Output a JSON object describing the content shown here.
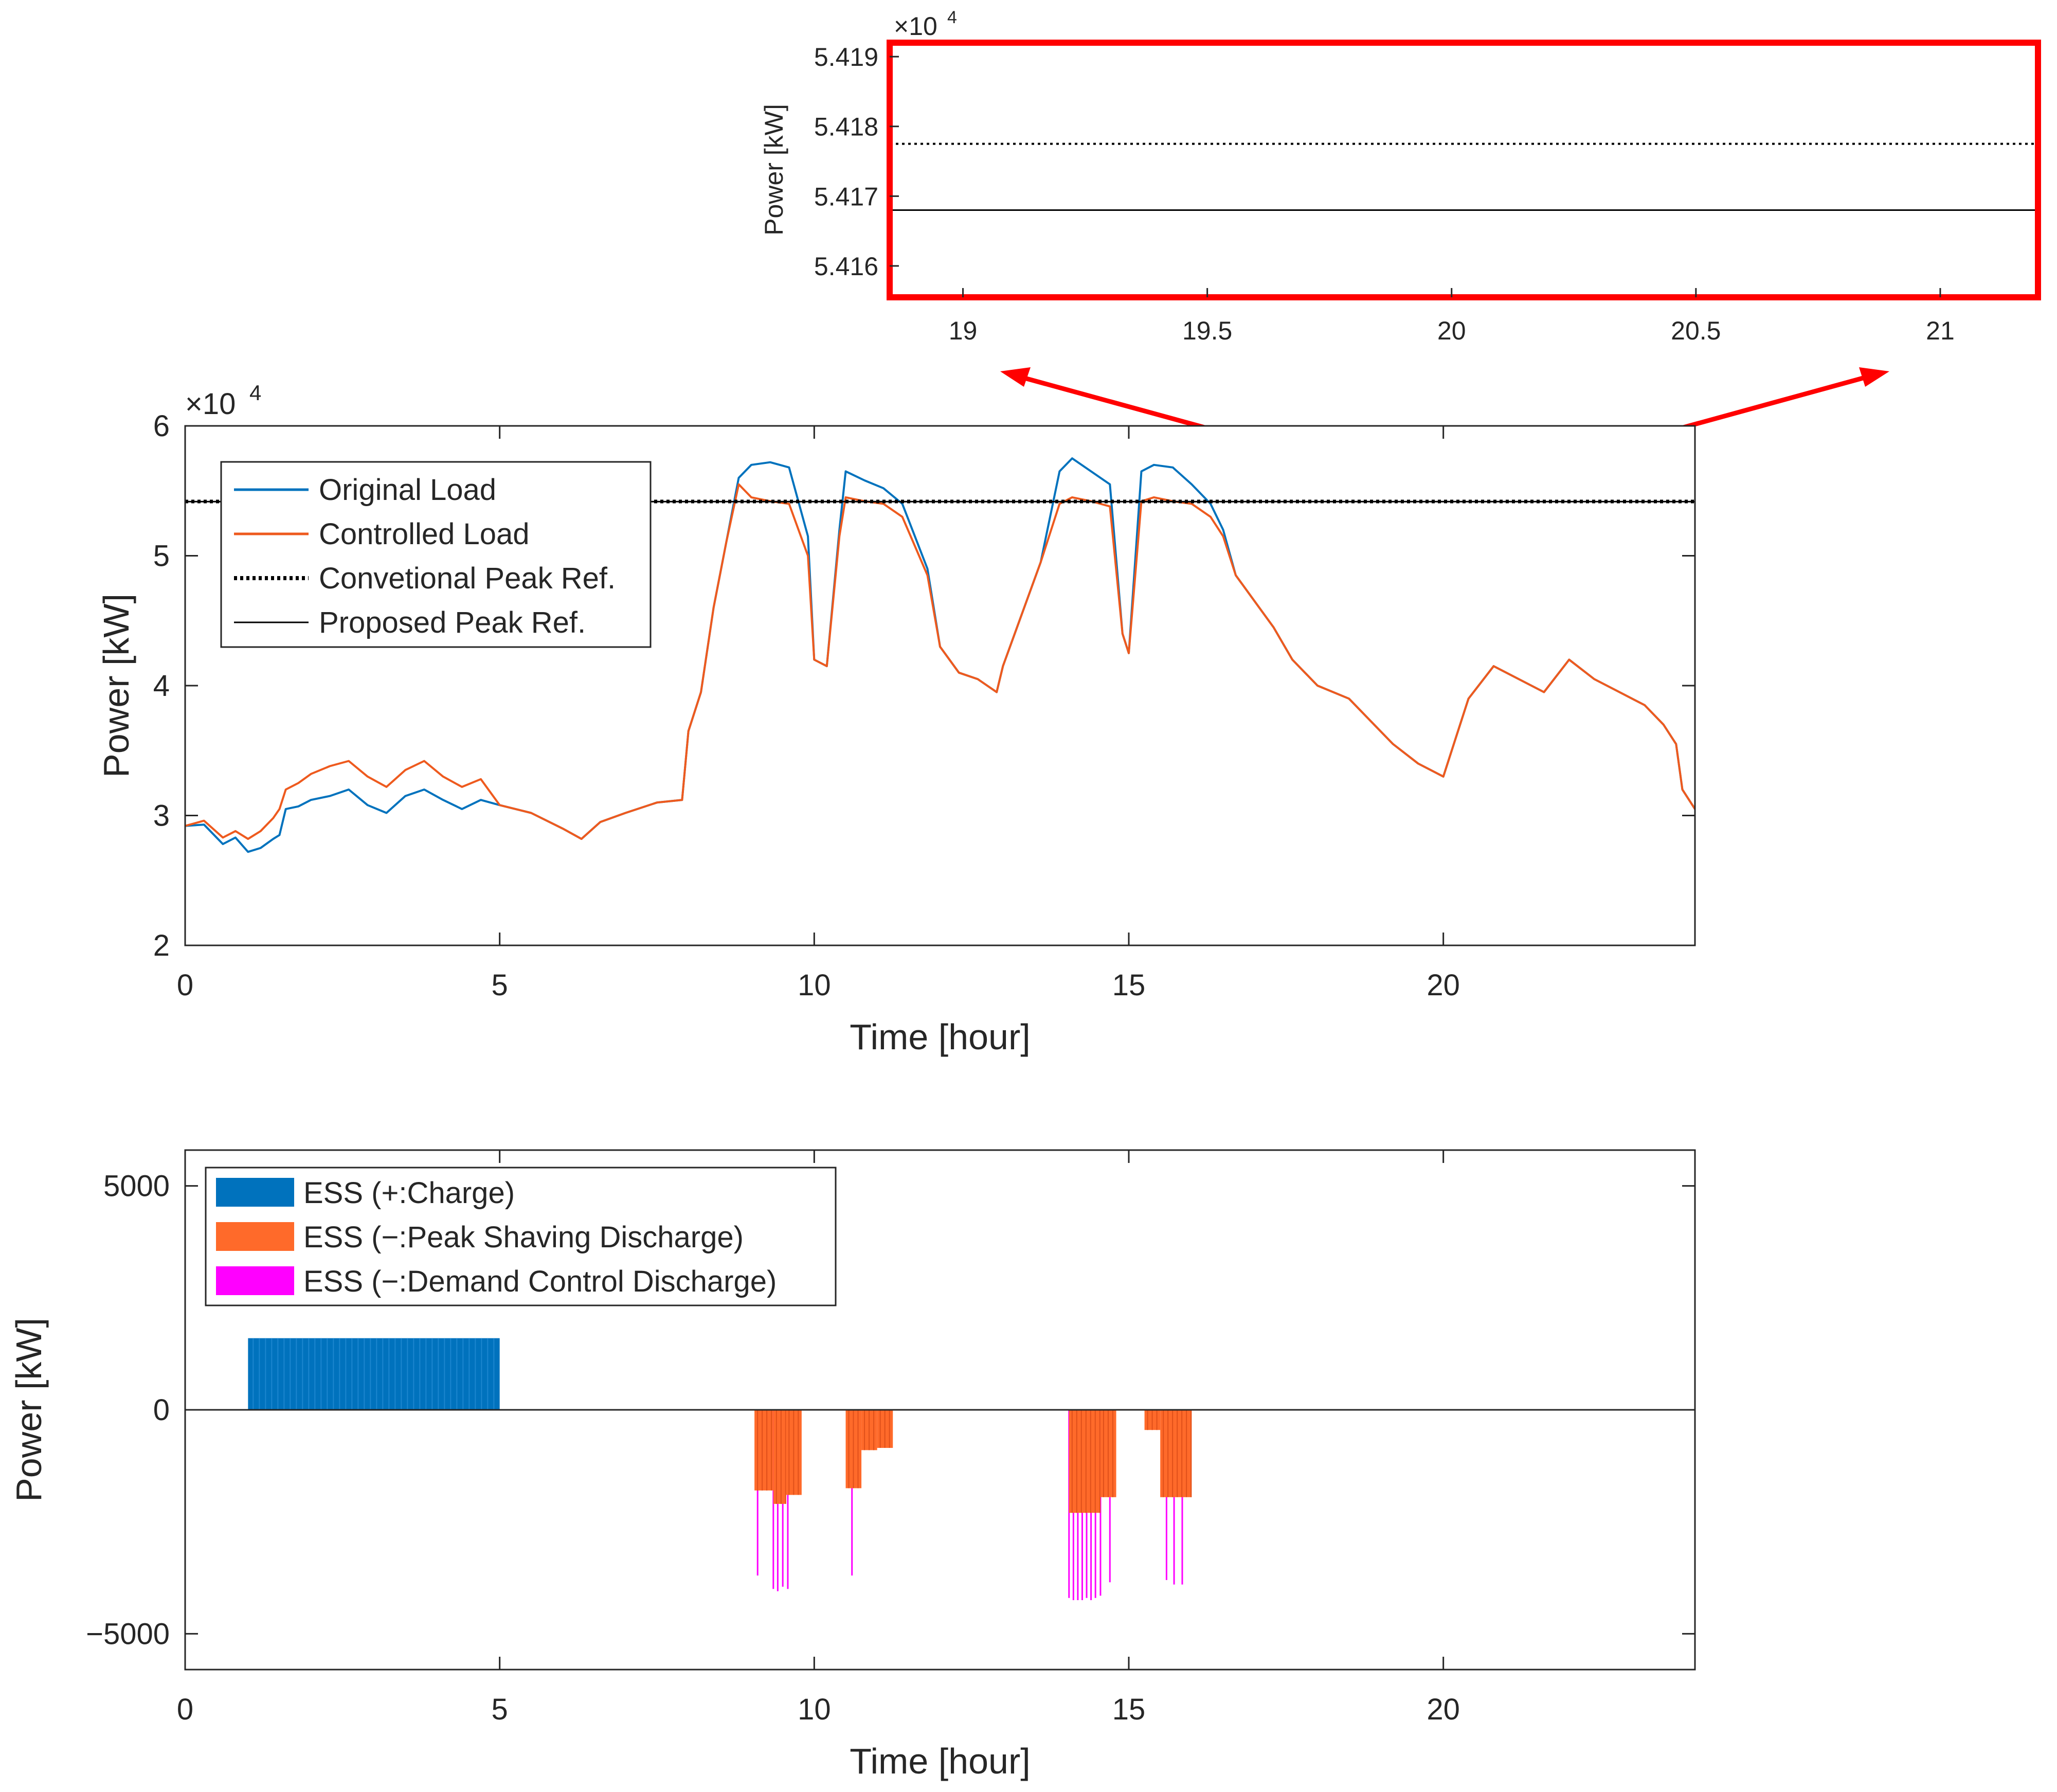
{
  "colors": {
    "original_load": "#0072BD",
    "controlled_load": "#EE5A1E",
    "reference": "#000000",
    "ess_charge": "#0072BD",
    "ess_peak_shaving": "#FF6A2A",
    "ess_demand_control": "#FF00FF",
    "zoom_box": "#FF0000",
    "axis": "#262626",
    "tick": "#262626"
  },
  "chart_data": [
    {
      "id": "zoom-inset",
      "type": "line",
      "xlim": [
        18.85,
        21.2
      ],
      "ylim": [
        5.41555,
        5.4192
      ],
      "x_ticks": [
        "19",
        "19.5",
        "20",
        "20.5",
        "21"
      ],
      "y_ticks": [
        "5.416",
        "5.417",
        "5.418",
        "5.419"
      ],
      "exponent": "×10",
      "exponent_power": "4",
      "ylabel": "Power [kW]",
      "series": [
        {
          "key": "conventional",
          "style": "dotted",
          "values": [
            5.41775
          ]
        },
        {
          "key": "proposed",
          "style": "solid",
          "values": [
            5.4168
          ]
        }
      ]
    },
    {
      "id": "load-chart",
      "type": "line",
      "xlim": [
        0,
        24
      ],
      "ylim": [
        2,
        6
      ],
      "x_ticks": [
        "0",
        "5",
        "10",
        "15",
        "20"
      ],
      "y_ticks": [
        "2",
        "3",
        "4",
        "5",
        "6"
      ],
      "exponent": "×10",
      "exponent_power": "4",
      "xlabel": "Time [hour]",
      "ylabel": "Power [kW]",
      "legend_position": "top-left",
      "legend": [
        "Original Load",
        "Controlled Load",
        "Convetional Peak Ref.",
        "Proposed Peak Ref."
      ],
      "series": [
        {
          "name": "Original Load",
          "x": [
            0,
            0.3,
            0.6,
            0.8,
            1.0,
            1.2,
            1.4,
            1.5,
            1.6,
            1.8,
            2.0,
            2.3,
            2.6,
            2.9,
            3.2,
            3.5,
            3.8,
            4.1,
            4.4,
            4.7,
            5.0,
            5.5,
            6.0,
            6.3,
            6.6,
            7.0,
            7.5,
            7.9,
            8.0,
            8.2,
            8.4,
            8.6,
            8.8,
            9.0,
            9.3,
            9.6,
            9.9,
            10.0,
            10.2,
            10.4,
            10.5,
            10.8,
            11.1,
            11.4,
            11.8,
            12.0,
            12.3,
            12.6,
            12.9,
            13.0,
            13.3,
            13.6,
            13.9,
            14.1,
            14.4,
            14.7,
            14.9,
            15.0,
            15.2,
            15.4,
            15.7,
            16.0,
            16.3,
            16.5,
            16.7,
            17.0,
            17.3,
            17.6,
            18.0,
            18.5,
            18.9,
            19.2,
            19.6,
            20.0,
            20.2,
            20.4,
            20.8,
            21.2,
            21.6,
            22.0,
            22.4,
            22.8,
            23.2,
            23.5,
            23.7,
            23.8,
            24.0
          ],
          "values": [
            2.92,
            2.93,
            2.78,
            2.83,
            2.72,
            2.75,
            2.82,
            2.85,
            3.05,
            3.07,
            3.12,
            3.15,
            3.2,
            3.08,
            3.02,
            3.15,
            3.2,
            3.12,
            3.05,
            3.12,
            3.08,
            3.02,
            2.9,
            2.82,
            2.95,
            3.02,
            3.1,
            3.12,
            3.65,
            3.95,
            4.6,
            5.1,
            5.6,
            5.7,
            5.72,
            5.68,
            5.15,
            4.2,
            4.15,
            5.2,
            5.65,
            5.58,
            5.52,
            5.4,
            4.9,
            4.3,
            4.1,
            4.05,
            3.95,
            4.15,
            4.55,
            4.95,
            5.65,
            5.75,
            5.65,
            5.55,
            4.4,
            4.25,
            5.65,
            5.7,
            5.68,
            5.55,
            5.4,
            5.2,
            4.85,
            4.65,
            4.45,
            4.2,
            4.0,
            3.9,
            3.7,
            3.55,
            3.4,
            3.3,
            3.6,
            3.9,
            4.15,
            4.05,
            3.95,
            4.2,
            4.05,
            3.95,
            3.85,
            3.7,
            3.55,
            3.2,
            3.05
          ]
        },
        {
          "name": "Controlled Load",
          "x": [
            0,
            0.3,
            0.6,
            0.8,
            1.0,
            1.2,
            1.4,
            1.5,
            1.6,
            1.8,
            2.0,
            2.3,
            2.6,
            2.9,
            3.2,
            3.5,
            3.8,
            4.1,
            4.4,
            4.7,
            5.0,
            5.5,
            6.0,
            6.3,
            6.6,
            7.0,
            7.5,
            7.9,
            8.0,
            8.2,
            8.4,
            8.6,
            8.8,
            9.0,
            9.3,
            9.6,
            9.9,
            10.0,
            10.2,
            10.4,
            10.5,
            10.8,
            11.1,
            11.4,
            11.8,
            12.0,
            12.3,
            12.6,
            12.9,
            13.0,
            13.3,
            13.6,
            13.9,
            14.1,
            14.4,
            14.7,
            14.9,
            15.0,
            15.2,
            15.4,
            15.7,
            16.0,
            16.3,
            16.5,
            16.7,
            17.0,
            17.3,
            17.6,
            18.0,
            18.5,
            18.9,
            19.2,
            19.6,
            20.0,
            20.2,
            20.4,
            20.8,
            21.2,
            21.6,
            22.0,
            22.4,
            22.8,
            23.2,
            23.5,
            23.7,
            23.8,
            24.0
          ],
          "values": [
            2.92,
            2.96,
            2.83,
            2.88,
            2.82,
            2.88,
            2.98,
            3.05,
            3.2,
            3.25,
            3.32,
            3.38,
            3.42,
            3.3,
            3.22,
            3.35,
            3.42,
            3.3,
            3.22,
            3.28,
            3.08,
            3.02,
            2.9,
            2.82,
            2.95,
            3.02,
            3.1,
            3.12,
            3.65,
            3.95,
            4.6,
            5.1,
            5.55,
            5.45,
            5.42,
            5.4,
            5.0,
            4.2,
            4.15,
            5.15,
            5.45,
            5.42,
            5.4,
            5.3,
            4.85,
            4.3,
            4.1,
            4.05,
            3.95,
            4.15,
            4.55,
            4.95,
            5.4,
            5.45,
            5.42,
            5.38,
            4.4,
            4.25,
            5.42,
            5.45,
            5.42,
            5.4,
            5.3,
            5.15,
            4.85,
            4.65,
            4.45,
            4.2,
            4.0,
            3.9,
            3.7,
            3.55,
            3.4,
            3.3,
            3.6,
            3.9,
            4.15,
            4.05,
            3.95,
            4.2,
            4.05,
            3.95,
            3.85,
            3.7,
            3.55,
            3.2,
            3.05
          ]
        },
        {
          "name": "Convetional Peak Ref.",
          "style": "dotted",
          "x": [
            0,
            24
          ],
          "values": [
            5.41775,
            5.41775
          ]
        },
        {
          "name": "Proposed Peak Ref.",
          "style": "solid",
          "x": [
            0,
            24
          ],
          "values": [
            5.4168,
            5.4168
          ]
        }
      ],
      "zoom_region": {
        "x": [
          18.55,
          21.6
        ],
        "y": [
          5.15,
          5.72
        ]
      }
    },
    {
      "id": "ess-chart",
      "type": "bar",
      "xlim": [
        0,
        24
      ],
      "ylim": [
        -5800,
        5800
      ],
      "x_ticks": [
        "0",
        "5",
        "10",
        "15",
        "20"
      ],
      "y_ticks": [
        "−5000",
        "0",
        "5000"
      ],
      "xlabel": "Time [hour]",
      "ylabel": "Power [kW]",
      "legend_position": "top-left",
      "legend": [
        "ESS (+:Charge)",
        "ESS (−:Peak Shaving Discharge)",
        "ESS (−:Demand Control Discharge)"
      ],
      "series": [
        {
          "name": "ESS (+:Charge)",
          "segments": [
            {
              "x": [
                1.0,
                5.0
              ],
              "value": 1600
            }
          ]
        },
        {
          "name": "ESS (−:Peak Shaving Discharge)",
          "segments": [
            {
              "x": [
                9.05,
                9.35
              ],
              "value": -1800
            },
            {
              "x": [
                9.35,
                9.55
              ],
              "value": -2100
            },
            {
              "x": [
                9.55,
                9.8
              ],
              "value": -1900
            },
            {
              "x": [
                10.5,
                10.75
              ],
              "value": -1750
            },
            {
              "x": [
                10.75,
                11.0
              ],
              "value": -900
            },
            {
              "x": [
                11.0,
                11.25
              ],
              "value": -850
            },
            {
              "x": [
                14.05,
                14.55
              ],
              "value": -2300
            },
            {
              "x": [
                14.55,
                14.8
              ],
              "value": -1950
            },
            {
              "x": [
                15.25,
                15.5
              ],
              "value": -450
            },
            {
              "x": [
                15.5,
                16.0
              ],
              "value": -1950
            }
          ]
        },
        {
          "name": "ESS (−:Demand Control Discharge)",
          "spikes": {
            "x": [
              9.1,
              9.35,
              9.42,
              9.5,
              9.58,
              10.6,
              14.05,
              14.12,
              14.19,
              14.26,
              14.33,
              14.4,
              14.47,
              14.55,
              14.7,
              15.6,
              15.72,
              15.85
            ],
            "values": [
              -3700,
              -4000,
              -4050,
              -3950,
              -4000,
              -3700,
              -4200,
              -4250,
              -4250,
              -4250,
              -4200,
              -4250,
              -4200,
              -4150,
              -3850,
              -3800,
              -3900,
              -3900
            ]
          }
        }
      ]
    }
  ]
}
